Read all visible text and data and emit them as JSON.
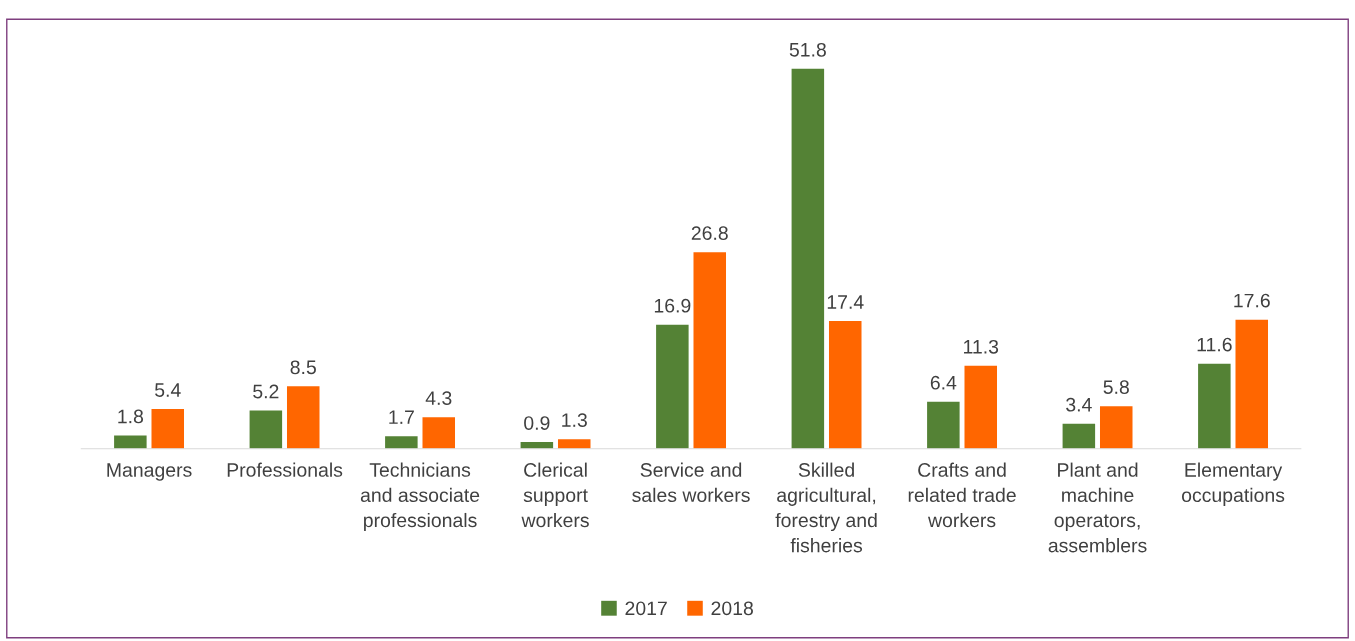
{
  "chart_data": {
    "type": "bar",
    "categories": [
      "Managers",
      "Professionals",
      "Technicians\nand associate\nprofessionals",
      "Clerical\nsupport\nworkers",
      "Service and\nsales workers",
      "Skilled\nagricultural,\nforestry and\nfisheries",
      "Crafts and\nrelated trade\nworkers",
      "Plant and\nmachine\noperators,\nassemblers",
      "Elementary\noccupations"
    ],
    "series": [
      {
        "name": "2017",
        "color": "#548235",
        "values": [
          1.8,
          5.2,
          1.7,
          0.9,
          16.9,
          51.8,
          6.4,
          3.4,
          11.6
        ]
      },
      {
        "name": "2018",
        "color": "#ff6600",
        "values": [
          5.4,
          8.5,
          4.3,
          1.3,
          26.8,
          17.4,
          11.3,
          5.8,
          17.6
        ]
      }
    ],
    "data_labels": true,
    "legend": "bottom",
    "tick_labels": "x"
  }
}
